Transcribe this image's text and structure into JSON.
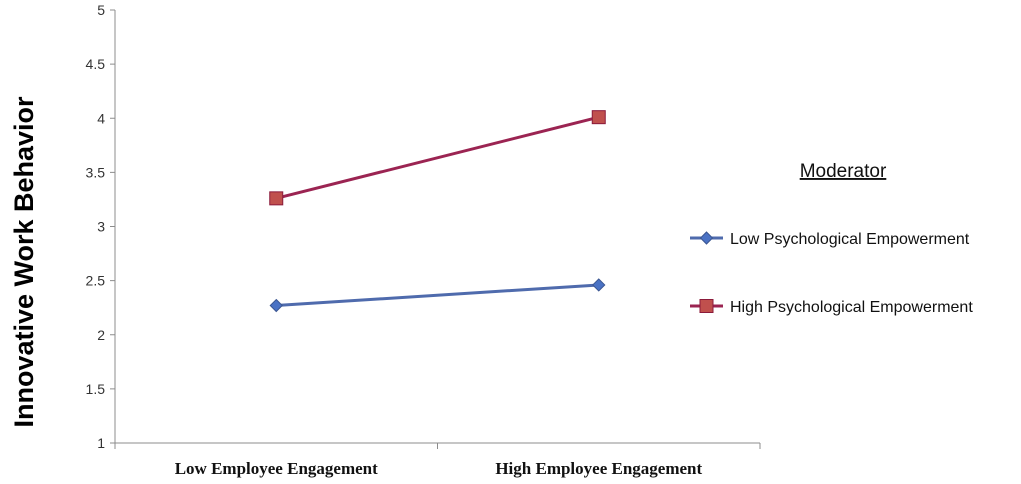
{
  "chart_data": {
    "type": "line",
    "title": "",
    "xlabel": "",
    "ylabel": "Innovative Work Behavior",
    "categories": [
      "Low Employee Engagement",
      "High Employee Engagement"
    ],
    "ylim": [
      1,
      5
    ],
    "yticks": [
      "1",
      "1.5",
      "2",
      "2.5",
      "3",
      "3.5",
      "4",
      "4.5",
      "5"
    ],
    "grid": false,
    "legend": {
      "title": "Moderator",
      "placement": "right"
    },
    "series": [
      {
        "name": "Low Psychological Empowerment",
        "values": [
          2.27,
          2.46
        ],
        "color": "#4F6BAD",
        "marker_color": "#4A72C4",
        "marker": "diamond"
      },
      {
        "name": "High Psychological Empowerment",
        "values": [
          3.26,
          4.01
        ],
        "color": "#9B2452",
        "marker_color": "#C0504D",
        "marker": "square"
      }
    ]
  }
}
